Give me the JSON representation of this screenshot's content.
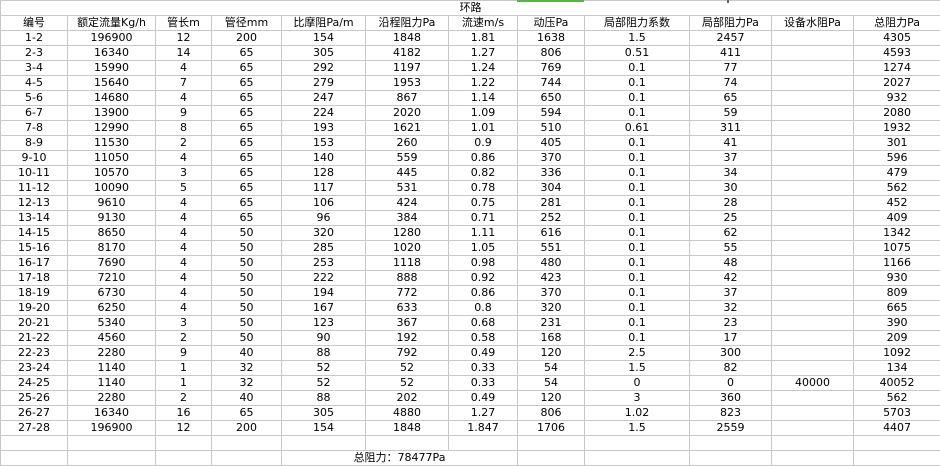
{
  "sheet": {
    "title": "环路",
    "headers": [
      "编号",
      "额定流量Kg/h",
      "管长m",
      "管径mm",
      "比摩阻Pa/m",
      "沿程阻力Pa",
      "流速m/s",
      "动压Pa",
      "局部阻力系数",
      "局部阻力Pa",
      "设备水阻Pa",
      "总阻力Pa"
    ],
    "rows": [
      [
        "1-2",
        "196900",
        "12",
        "200",
        "154",
        "1848",
        "1.81",
        "1638",
        "1.5",
        "2457",
        "",
        "4305"
      ],
      [
        "2-3",
        "16340",
        "14",
        "65",
        "305",
        "4182",
        "1.27",
        "806",
        "0.51",
        "411",
        "",
        "4593"
      ],
      [
        "3-4",
        "15990",
        "4",
        "65",
        "292",
        "1197",
        "1.24",
        "769",
        "0.1",
        "77",
        "",
        "1274"
      ],
      [
        "4-5",
        "15640",
        "7",
        "65",
        "279",
        "1953",
        "1.22",
        "744",
        "0.1",
        "74",
        "",
        "2027"
      ],
      [
        "5-6",
        "14680",
        "4",
        "65",
        "247",
        "867",
        "1.14",
        "650",
        "0.1",
        "65",
        "",
        "932"
      ],
      [
        "6-7",
        "13900",
        "9",
        "65",
        "224",
        "2020",
        "1.09",
        "594",
        "0.1",
        "59",
        "",
        "2080"
      ],
      [
        "7-8",
        "12990",
        "8",
        "65",
        "193",
        "1621",
        "1.01",
        "510",
        "0.61",
        "311",
        "",
        "1932"
      ],
      [
        "8-9",
        "11530",
        "2",
        "65",
        "153",
        "260",
        "0.9",
        "405",
        "0.1",
        "41",
        "",
        "301"
      ],
      [
        "9-10",
        "11050",
        "4",
        "65",
        "140",
        "559",
        "0.86",
        "370",
        "0.1",
        "37",
        "",
        "596"
      ],
      [
        "10-11",
        "10570",
        "3",
        "65",
        "128",
        "445",
        "0.82",
        "336",
        "0.1",
        "34",
        "",
        "479"
      ],
      [
        "11-12",
        "10090",
        "5",
        "65",
        "117",
        "531",
        "0.78",
        "304",
        "0.1",
        "30",
        "",
        "562"
      ],
      [
        "12-13",
        "9610",
        "4",
        "65",
        "106",
        "424",
        "0.75",
        "281",
        "0.1",
        "28",
        "",
        "452"
      ],
      [
        "13-14",
        "9130",
        "4",
        "65",
        "96",
        "384",
        "0.71",
        "252",
        "0.1",
        "25",
        "",
        "409"
      ],
      [
        "14-15",
        "8650",
        "4",
        "50",
        "320",
        "1280",
        "1.11",
        "616",
        "0.1",
        "62",
        "",
        "1342"
      ],
      [
        "15-16",
        "8170",
        "4",
        "50",
        "285",
        "1020",
        "1.05",
        "551",
        "0.1",
        "55",
        "",
        "1075"
      ],
      [
        "16-17",
        "7690",
        "4",
        "50",
        "253",
        "1118",
        "0.98",
        "480",
        "0.1",
        "48",
        "",
        "1166"
      ],
      [
        "17-18",
        "7210",
        "4",
        "50",
        "222",
        "888",
        "0.92",
        "423",
        "0.1",
        "42",
        "",
        "930"
      ],
      [
        "18-19",
        "6730",
        "4",
        "50",
        "194",
        "772",
        "0.86",
        "370",
        "0.1",
        "37",
        "",
        "809"
      ],
      [
        "19-20",
        "6250",
        "4",
        "50",
        "167",
        "633",
        "0.8",
        "320",
        "0.1",
        "32",
        "",
        "665"
      ],
      [
        "20-21",
        "5340",
        "3",
        "50",
        "123",
        "367",
        "0.68",
        "231",
        "0.1",
        "23",
        "",
        "390"
      ],
      [
        "21-22",
        "4560",
        "2",
        "50",
        "90",
        "192",
        "0.58",
        "168",
        "0.1",
        "17",
        "",
        "209"
      ],
      [
        "22-23",
        "2280",
        "9",
        "40",
        "88",
        "792",
        "0.49",
        "120",
        "2.5",
        "300",
        "",
        "1092"
      ],
      [
        "23-24",
        "1140",
        "1",
        "32",
        "52",
        "52",
        "0.33",
        "54",
        "1.5",
        "82",
        "",
        "134"
      ],
      [
        "24-25",
        "1140",
        "1",
        "32",
        "52",
        "52",
        "0.33",
        "54",
        "0",
        "0",
        "40000",
        "40052"
      ],
      [
        "25-26",
        "2280",
        "2",
        "40",
        "88",
        "202",
        "0.49",
        "120",
        "3",
        "360",
        "",
        "562"
      ],
      [
        "26-27",
        "16340",
        "16",
        "65",
        "305",
        "4880",
        "1.27",
        "806",
        "1.02",
        "823",
        "",
        "5703"
      ],
      [
        "27-28",
        "196900",
        "12",
        "200",
        "154",
        "1848",
        "1.847",
        "1706",
        "1.5",
        "2559",
        "",
        "4407"
      ]
    ],
    "total_label": "总阻力：78477Pa",
    "selection_color": "#5bb24a"
  }
}
